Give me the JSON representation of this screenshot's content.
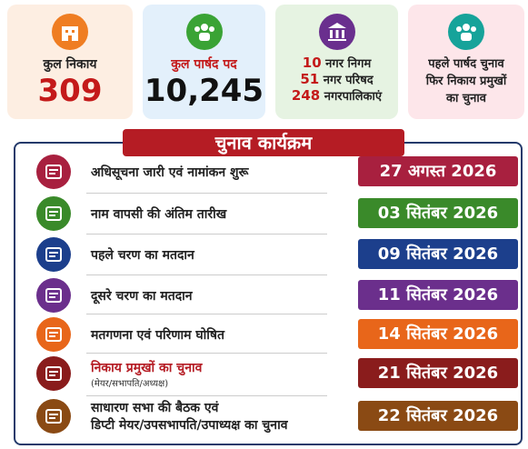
{
  "cards": [
    {
      "label": "कुल निकाय",
      "value": "309"
    },
    {
      "label": "कुल पार्षद पद",
      "value": "10,245"
    },
    {
      "items": [
        {
          "num": "10",
          "label": "नगर निगम"
        },
        {
          "num": "51",
          "label": "नगर परिषद"
        },
        {
          "num": "248",
          "label": "नगरपालिकाएं"
        }
      ]
    },
    {
      "lines": [
        "पहले पार्षद चुनाव",
        "फिर निकाय प्रमुखों",
        "का चुनाव"
      ]
    }
  ],
  "schedule": {
    "title": "चुनाव कार्यक्रम",
    "rows": [
      {
        "event": "अधिसूचना जारी एवं नामांकन शुरू",
        "date": "27 अगस्त 2026"
      },
      {
        "event": "नाम वापसी की अंतिम तारीख",
        "date": "03 सितंबर 2026"
      },
      {
        "event": "पहले चरण का मतदान",
        "date": "09 सितंबर 2026"
      },
      {
        "event": "दूसरे चरण का मतदान",
        "date": "11 सितंबर 2026"
      },
      {
        "event": "मतगणना एवं परिणाम घोषित",
        "date": "14 सितंबर 2026"
      },
      {
        "event": "निकाय प्रमुखों का चुनाव",
        "sub": "(मेयर/सभापति/अध्यक्ष)",
        "date": "21 सितंबर 2026"
      },
      {
        "event": "साधारण सभा की बैठक एवं",
        "event2": "डिप्टी मेयर/उपसभापति/उपाध्यक्ष का चुनाव",
        "date": "22 सितंबर 2026"
      }
    ]
  }
}
